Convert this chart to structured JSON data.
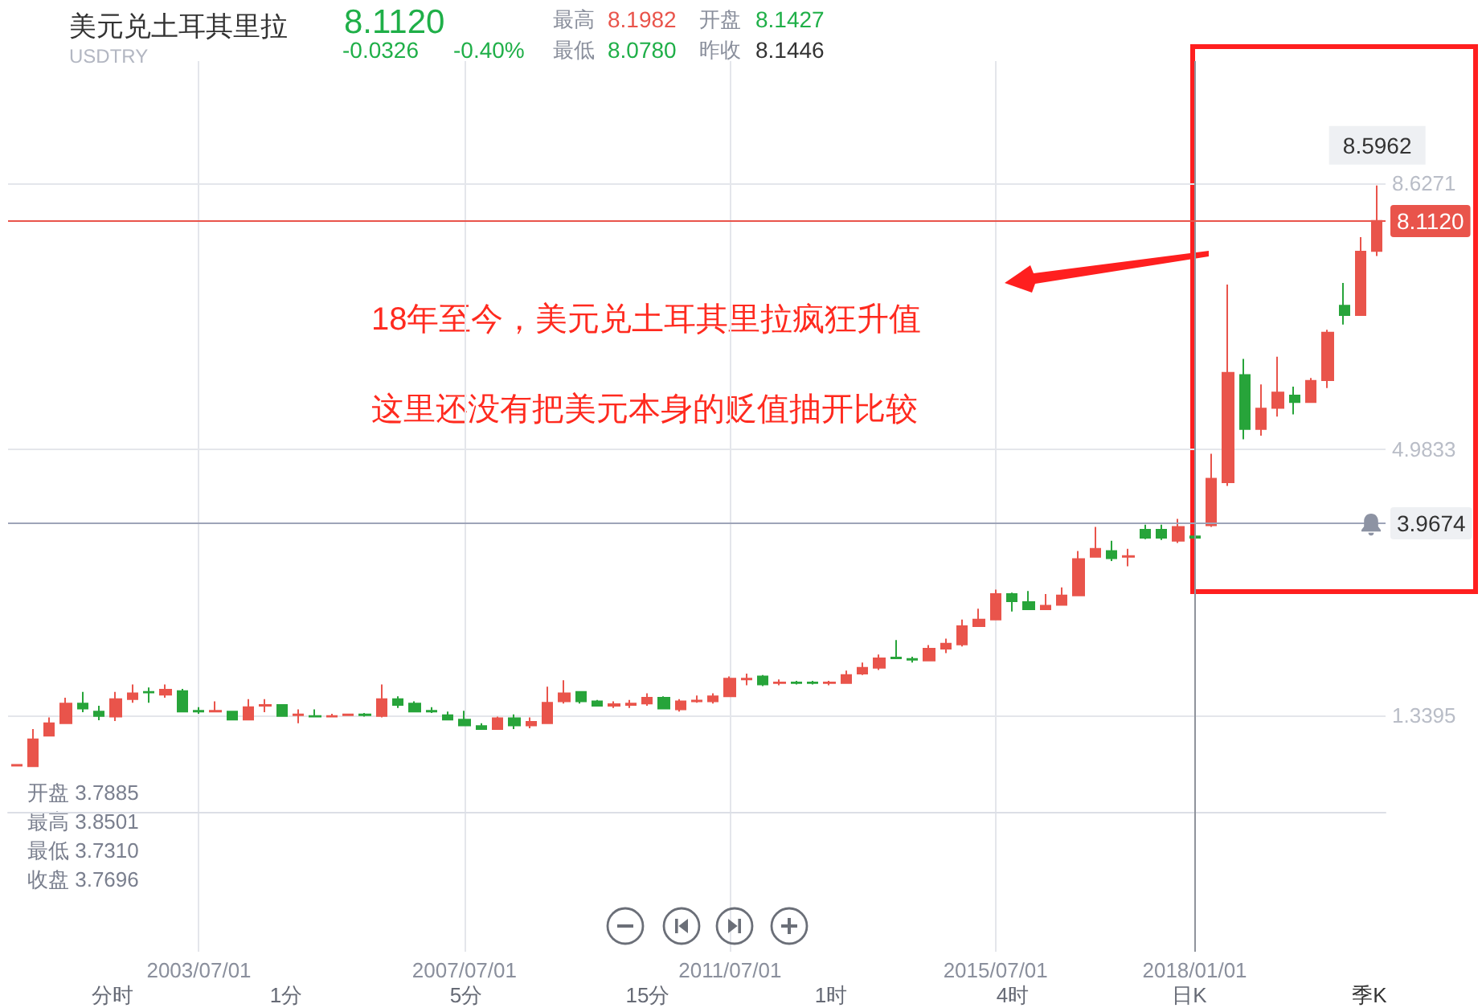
{
  "chart_data": {
    "type": "candlestick",
    "title": "美元兑土耳其里拉",
    "subtitle": "USDTRY",
    "categories": [
      null,
      null,
      null,
      null,
      null,
      null,
      null,
      null,
      null,
      null,
      null,
      "2003/07/01",
      null,
      null,
      null,
      null,
      null,
      null,
      null,
      null,
      null,
      null,
      null,
      null,
      null,
      null,
      null,
      "2007/07/01",
      null,
      null,
      null,
      null,
      null,
      null,
      null,
      null,
      null,
      null,
      null,
      null,
      null,
      null,
      null,
      "2011/07/01",
      null,
      null,
      null,
      null,
      null,
      null,
      null,
      null,
      null,
      null,
      null,
      null,
      null,
      null,
      null,
      "2015/07/01",
      null,
      null,
      null,
      null,
      null,
      null,
      null,
      null,
      null,
      null,
      null,
      "2018/01/01",
      null,
      null,
      null,
      null,
      null,
      null,
      null,
      null,
      null,
      null,
      null
    ],
    "ohlc": [
      [
        0.65,
        0.67,
        0.64,
        0.66
      ],
      [
        0.64,
        1.15,
        0.64,
        1.01
      ],
      [
        1.06,
        1.31,
        1.06,
        1.23
      ],
      [
        1.23,
        1.58,
        1.23,
        1.5
      ],
      [
        1.5,
        1.66,
        1.38,
        1.43
      ],
      [
        1.39,
        1.47,
        1.27,
        1.33
      ],
      [
        1.32,
        1.66,
        1.26,
        1.56
      ],
      [
        1.56,
        1.76,
        1.51,
        1.64
      ],
      [
        1.66,
        1.72,
        1.51,
        1.65
      ],
      [
        1.62,
        1.76,
        1.58,
        1.69
      ],
      [
        1.67,
        1.7,
        1.39,
        1.39
      ],
      [
        1.4,
        1.45,
        1.36,
        1.39
      ],
      [
        1.39,
        1.53,
        1.39,
        1.4
      ],
      [
        1.39,
        1.4,
        1.28,
        1.28
      ],
      [
        1.28,
        1.56,
        1.28,
        1.45
      ],
      [
        1.47,
        1.56,
        1.38,
        1.48
      ],
      [
        1.48,
        1.49,
        1.32,
        1.33
      ],
      [
        1.34,
        1.42,
        1.23,
        1.35
      ],
      [
        1.33,
        1.42,
        1.31,
        1.32
      ],
      [
        1.32,
        1.36,
        1.31,
        1.33
      ],
      [
        1.34,
        1.36,
        1.33,
        1.35
      ],
      [
        1.35,
        1.37,
        1.32,
        1.34
      ],
      [
        1.33,
        1.76,
        1.31,
        1.56
      ],
      [
        1.56,
        1.6,
        1.44,
        1.48
      ],
      [
        1.5,
        1.53,
        1.39,
        1.39
      ],
      [
        1.4,
        1.45,
        1.37,
        1.39
      ],
      [
        1.34,
        1.39,
        1.27,
        1.28
      ],
      [
        1.28,
        1.4,
        1.19,
        1.2
      ],
      [
        1.19,
        1.23,
        1.15,
        1.15
      ],
      [
        1.15,
        1.32,
        1.15,
        1.3
      ],
      [
        1.3,
        1.35,
        1.15,
        1.2
      ],
      [
        1.2,
        1.31,
        1.16,
        1.25
      ],
      [
        1.23,
        1.73,
        1.23,
        1.51
      ],
      [
        1.53,
        1.82,
        1.5,
        1.64
      ],
      [
        1.66,
        1.67,
        1.5,
        1.53
      ],
      [
        1.53,
        1.55,
        1.46,
        1.47
      ],
      [
        1.47,
        1.53,
        1.44,
        1.49
      ],
      [
        1.48,
        1.55,
        1.44,
        1.5
      ],
      [
        1.5,
        1.64,
        1.47,
        1.58
      ],
      [
        1.58,
        1.6,
        1.42,
        1.43
      ],
      [
        1.42,
        1.56,
        1.39,
        1.53
      ],
      [
        1.53,
        1.61,
        1.51,
        1.54
      ],
      [
        1.53,
        1.64,
        1.5,
        1.6
      ],
      [
        1.6,
        1.87,
        1.6,
        1.84
      ],
      [
        1.83,
        1.91,
        1.75,
        1.84
      ],
      [
        1.87,
        1.89,
        1.74,
        1.76
      ],
      [
        1.78,
        1.83,
        1.75,
        1.79
      ],
      [
        1.79,
        1.81,
        1.76,
        1.78
      ],
      [
        1.79,
        1.81,
        1.76,
        1.78
      ],
      [
        1.78,
        1.81,
        1.75,
        1.79
      ],
      [
        1.78,
        1.95,
        1.77,
        1.89
      ],
      [
        1.91,
        2.06,
        1.89,
        1.99
      ],
      [
        1.99,
        2.17,
        1.96,
        2.12
      ],
      [
        2.13,
        2.37,
        2.11,
        2.12
      ],
      [
        2.11,
        2.14,
        2.06,
        2.1
      ],
      [
        2.09,
        2.3,
        2.08,
        2.25
      ],
      [
        2.25,
        2.39,
        2.19,
        2.32
      ],
      [
        2.31,
        2.65,
        2.28,
        2.56
      ],
      [
        2.56,
        2.8,
        2.55,
        2.65
      ],
      [
        2.65,
        3.06,
        2.64,
        3.0
      ],
      [
        3.0,
        3.02,
        2.76,
        2.9
      ],
      [
        2.89,
        3.04,
        2.78,
        2.79
      ],
      [
        2.79,
        3.0,
        2.78,
        2.84
      ],
      [
        2.85,
        3.09,
        2.85,
        2.98
      ],
      [
        2.98,
        3.59,
        2.98,
        3.48
      ],
      [
        3.51,
        3.92,
        3.51,
        3.62
      ],
      [
        3.59,
        3.73,
        3.45,
        3.49
      ],
      [
        3.51,
        3.62,
        3.38,
        3.52
      ],
      [
        3.88,
        3.95,
        3.75,
        3.77
      ],
      [
        3.88,
        3.95,
        3.74,
        3.77
      ],
      [
        3.73,
        4.03,
        3.7,
        3.92
      ],
      [
        3.7885,
        3.8501,
        3.731,
        3.7696
      ],
      [
        3.94,
        4.92,
        3.92,
        4.58
      ],
      [
        4.53,
        7.24,
        4.48,
        6.03
      ],
      [
        6.0,
        6.22,
        5.12,
        5.26
      ],
      [
        5.26,
        5.87,
        5.17,
        5.54
      ],
      [
        5.55,
        6.25,
        5.43,
        5.76
      ],
      [
        5.72,
        5.84,
        5.46,
        5.63
      ],
      [
        5.63,
        5.96,
        5.62,
        5.92
      ],
      [
        5.93,
        6.62,
        5.82,
        6.58
      ],
      [
        6.95,
        7.26,
        6.69,
        6.82
      ],
      [
        6.82,
        7.89,
        6.82,
        7.69
      ],
      [
        7.7,
        8.5962,
        7.63,
        8.112
      ]
    ],
    "ylim": [
      -1.9,
      10.3
    ],
    "yticks": [
      1.3395,
      4.9833,
      8.6271
    ],
    "grid": true,
    "ref_lines": [
      {
        "axis": "x",
        "value": "2018/01/01",
        "color": "#8f939c"
      },
      {
        "axis": "y",
        "value": 3.9674,
        "label": "3.9674",
        "color": "#9ea4b8"
      },
      {
        "axis": "y",
        "value": 8.112,
        "label": "8.1120",
        "color": "#e9544b"
      }
    ],
    "annotations": [
      "8.1120",
      "-0.0326",
      "-0.40%",
      "最高",
      "8.1982",
      "开盘",
      "8.1427",
      "最低",
      "8.0780",
      "昨收",
      "8.1446",
      "开盘 3.7885",
      "最高 3.8501",
      "最低 3.7310",
      "收盘 3.7696",
      "18年至今，美元兑土耳其里拉疯狂升值",
      "这里还没有把美元本身的贬值抽开比较",
      {
        "text": "8.5962",
        "y": 8.5962
      },
      "分时",
      "1分",
      "5分",
      "15分",
      "1时",
      "4时",
      "日K",
      "季K"
    ]
  }
}
